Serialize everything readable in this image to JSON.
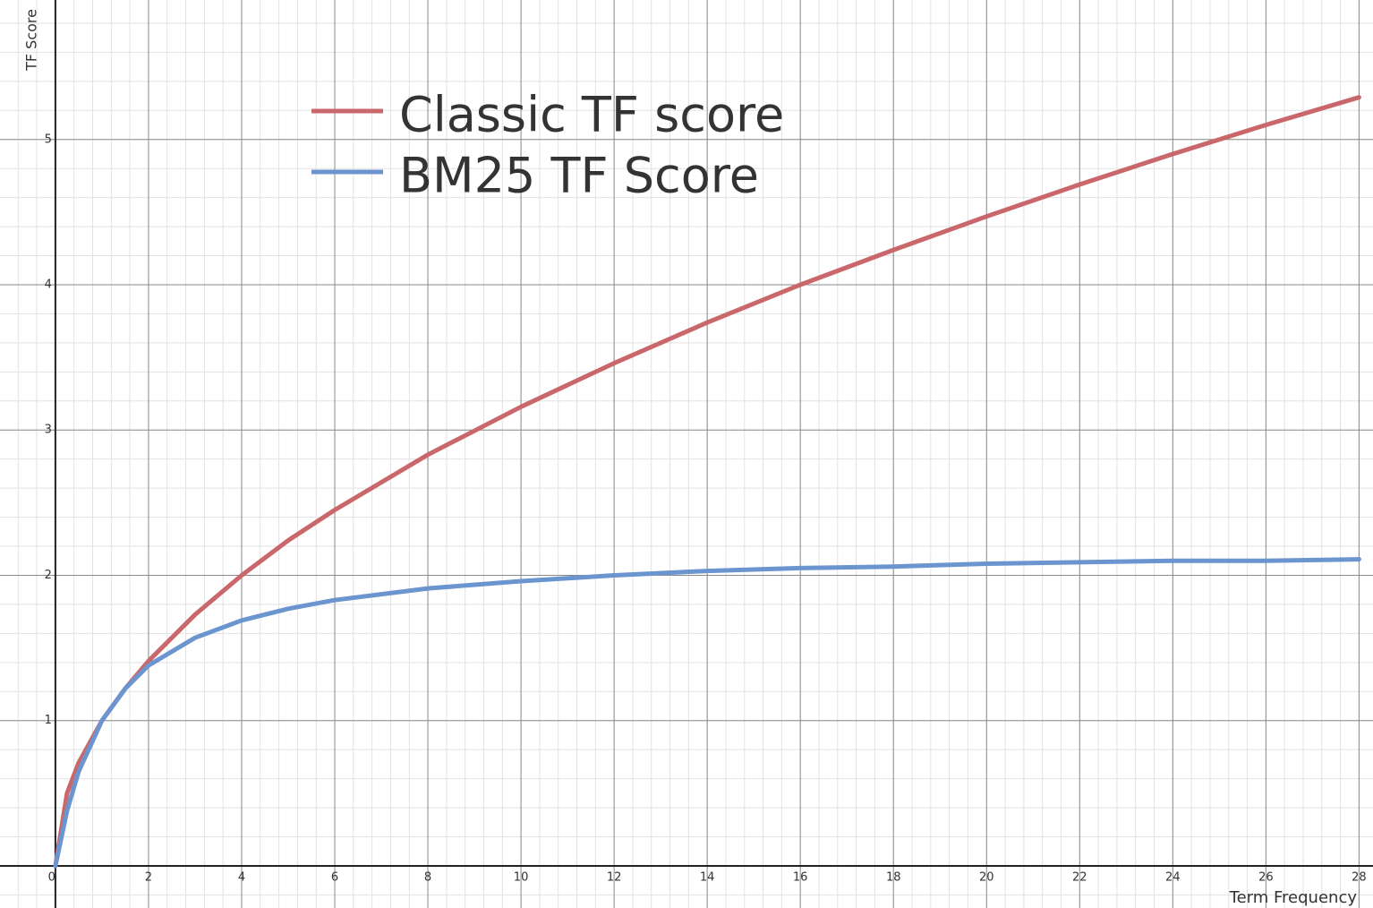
{
  "chart_data": {
    "type": "line",
    "x_label": "Term Frequency",
    "y_label": "TF Score",
    "x": [
      0,
      0.25,
      0.5,
      1,
      1.5,
      2,
      3,
      4,
      5,
      6,
      8,
      10,
      12,
      14,
      16,
      18,
      20,
      22,
      24,
      26,
      28
    ],
    "series": [
      {
        "name": "Classic TF score",
        "color": "#c9676a",
        "values": [
          0,
          0.5,
          0.71,
          1,
          1.22,
          1.41,
          1.73,
          2,
          2.24,
          2.45,
          2.83,
          3.16,
          3.46,
          3.74,
          4,
          4.24,
          4.47,
          4.69,
          4.9,
          5.1,
          5.29
        ]
      },
      {
        "name": "BM25 TF Score",
        "color": "#6a95cf",
        "values": [
          0,
          0.38,
          0.65,
          1,
          1.22,
          1.38,
          1.57,
          1.69,
          1.77,
          1.83,
          1.91,
          1.96,
          2,
          2.03,
          2.05,
          2.06,
          2.08,
          2.09,
          2.1,
          2.1,
          2.11
        ]
      }
    ],
    "xlim": [
      -1.19,
      28.3
    ],
    "ylim": [
      -0.29,
      5.96
    ],
    "xticks": [
      0,
      2,
      4,
      6,
      8,
      10,
      12,
      14,
      16,
      18,
      20,
      22,
      24,
      26,
      28
    ],
    "yticks": [
      1,
      2,
      3,
      4,
      5
    ],
    "grid": true,
    "minor_grid": {
      "x": 0.4,
      "y": 0.2
    },
    "legend": "upper-left"
  }
}
